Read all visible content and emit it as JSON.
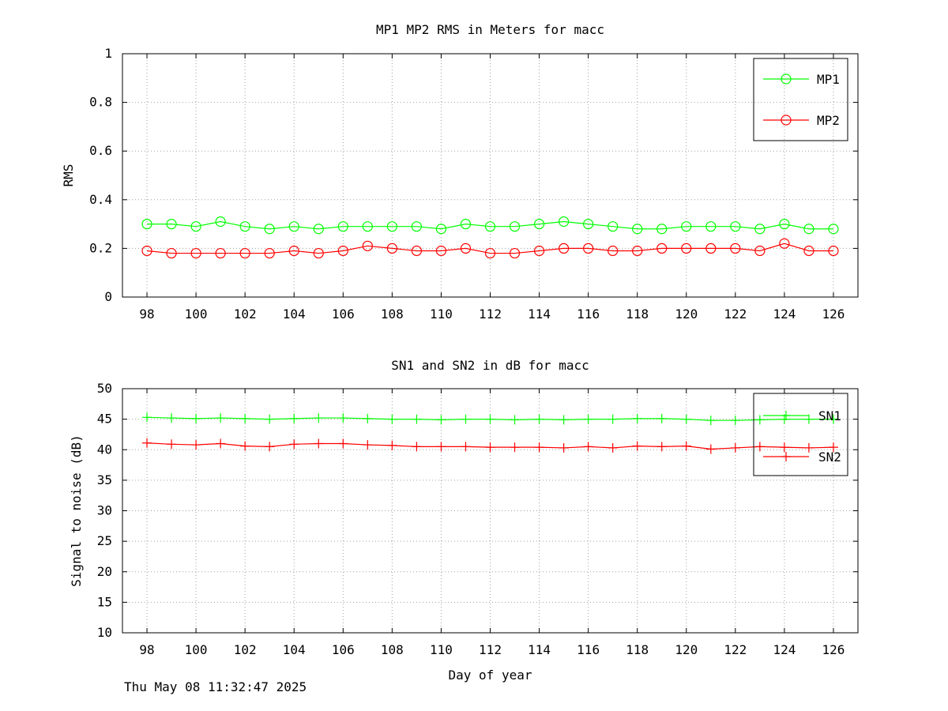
{
  "chart_data": [
    {
      "type": "line",
      "title": "MP1 MP2 RMS in Meters for macc",
      "xlabel": "",
      "ylabel": "RMS",
      "xlim": [
        97,
        127
      ],
      "ylim": [
        0,
        1
      ],
      "xticks": [
        98,
        100,
        102,
        104,
        106,
        108,
        110,
        112,
        114,
        116,
        118,
        120,
        122,
        124,
        126
      ],
      "yticks": [
        0,
        0.2,
        0.4,
        0.6,
        0.8,
        1
      ],
      "ytick_labels": [
        "0",
        "0.2",
        "0.4",
        "0.6",
        "0.8",
        "1"
      ],
      "grid": true,
      "legend_position": "top-right",
      "marker": "circle",
      "x": [
        98,
        99,
        100,
        101,
        102,
        103,
        104,
        105,
        106,
        107,
        108,
        109,
        110,
        111,
        112,
        113,
        114,
        115,
        116,
        117,
        118,
        119,
        120,
        121,
        122,
        123,
        124,
        125,
        126
      ],
      "series": [
        {
          "name": "MP1",
          "color": "#00ff00",
          "values": [
            0.3,
            0.3,
            0.29,
            0.31,
            0.29,
            0.28,
            0.29,
            0.28,
            0.29,
            0.29,
            0.29,
            0.29,
            0.28,
            0.3,
            0.29,
            0.29,
            0.3,
            0.31,
            0.3,
            0.29,
            0.28,
            0.28,
            0.29,
            0.29,
            0.29,
            0.28,
            0.3,
            0.28,
            0.28
          ]
        },
        {
          "name": "MP2",
          "color": "#ff0000",
          "values": [
            0.19,
            0.18,
            0.18,
            0.18,
            0.18,
            0.18,
            0.19,
            0.18,
            0.19,
            0.21,
            0.2,
            0.19,
            0.19,
            0.2,
            0.18,
            0.18,
            0.19,
            0.2,
            0.2,
            0.19,
            0.19,
            0.2,
            0.2,
            0.2,
            0.2,
            0.19,
            0.22,
            0.19,
            0.19
          ]
        }
      ]
    },
    {
      "type": "line",
      "title": "SN1 and SN2 in dB for macc",
      "xlabel": "Day of year",
      "ylabel": "Signal to noise (dB)",
      "xlim": [
        97,
        127
      ],
      "ylim": [
        10,
        50
      ],
      "xticks": [
        98,
        100,
        102,
        104,
        106,
        108,
        110,
        112,
        114,
        116,
        118,
        120,
        122,
        124,
        126
      ],
      "yticks": [
        10,
        15,
        20,
        25,
        30,
        35,
        40,
        45,
        50
      ],
      "ytick_labels": [
        "10",
        "15",
        "20",
        "25",
        "30",
        "35",
        "40",
        "45",
        "50"
      ],
      "grid": true,
      "legend_position": "top-right",
      "marker": "plus",
      "x": [
        98,
        99,
        100,
        101,
        102,
        103,
        104,
        105,
        106,
        107,
        108,
        109,
        110,
        111,
        112,
        113,
        114,
        115,
        116,
        117,
        118,
        119,
        120,
        121,
        122,
        123,
        124,
        125,
        126
      ],
      "series": [
        {
          "name": "SN1",
          "color": "#00ff00",
          "values": [
            45.3,
            45.2,
            45.1,
            45.2,
            45.1,
            45.0,
            45.1,
            45.2,
            45.2,
            45.1,
            45.0,
            45.0,
            44.9,
            45.0,
            45.0,
            44.9,
            45.0,
            44.9,
            45.0,
            45.0,
            45.1,
            45.1,
            45.0,
            44.8,
            44.8,
            44.9,
            45.0,
            45.0,
            45.0
          ]
        },
        {
          "name": "SN2",
          "color": "#ff0000",
          "values": [
            41.1,
            40.9,
            40.8,
            41.0,
            40.6,
            40.5,
            40.9,
            41.0,
            41.0,
            40.8,
            40.7,
            40.5,
            40.5,
            40.5,
            40.4,
            40.4,
            40.4,
            40.3,
            40.5,
            40.3,
            40.6,
            40.5,
            40.6,
            40.1,
            40.3,
            40.5,
            40.4,
            40.3,
            40.4
          ]
        }
      ]
    }
  ],
  "footer": {
    "timestamp": "Thu May 08 11:32:47 2025"
  }
}
